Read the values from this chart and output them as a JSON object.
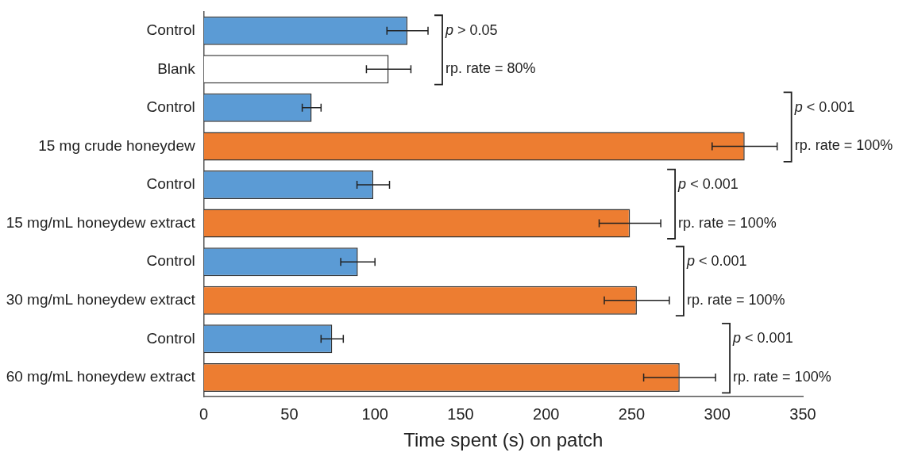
{
  "chart_data": {
    "type": "bar",
    "orientation": "horizontal",
    "xlabel": "Time spent (s) on patch",
    "categories": [
      "Control",
      "Blank",
      "Control",
      "15 mg crude honeydew",
      "Control",
      "15 mg/mL honeydew extract",
      "Control",
      "30 mg/mL honeydew extract",
      "Control",
      "60 mg/mL honeydew extract"
    ],
    "values": [
      119,
      108,
      63,
      316,
      99,
      249,
      90,
      253,
      75,
      278
    ],
    "errors": [
      12,
      13,
      5.5,
      19,
      9.5,
      18,
      10,
      19,
      6.5,
      21
    ],
    "colors": [
      "#5b9bd5",
      "#ffffff",
      "#5b9bd5",
      "#ed7d31",
      "#5b9bd5",
      "#ed7d31",
      "#5b9bd5",
      "#ed7d31",
      "#5b9bd5",
      "#ed7d31"
    ],
    "xlim": [
      0,
      350
    ],
    "xticks": [
      0,
      50,
      100,
      150,
      200,
      250,
      300,
      350
    ],
    "grid": false,
    "legend": false,
    "annotations": [
      "p > 0.05",
      "rp. rate = 80%",
      "p < 0.001",
      "rp. rate = 100%",
      "p < 0.001",
      "rp. rate = 100%",
      "p < 0.001",
      "rp. rate = 100%",
      "p < 0.001",
      "rp. rate = 100%"
    ]
  }
}
